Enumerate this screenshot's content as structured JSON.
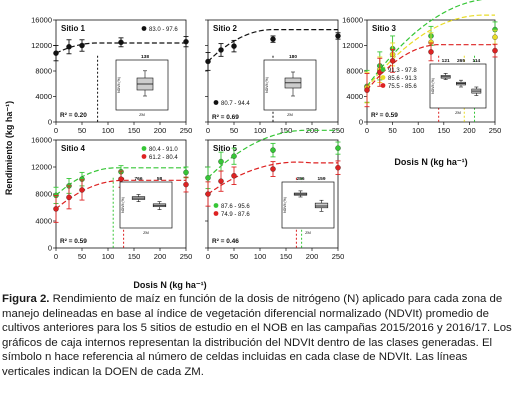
{
  "figure": {
    "y_axis_label": "Rendimiento (kg ha⁻¹)",
    "x_axis_label_bottom_left": "Dosis N (kg ha⁻¹)",
    "x_axis_label_right": "Dosis N (kg ha⁻¹)"
  },
  "caption": {
    "lead": "Figura 2.",
    "text": " Rendimiento de maíz en función de la dosis de nitrógeno (N) aplicado para cada zona de manejo delineadas en base al índice de vegetación diferencial normalizado (NDVIt) promedio de cultivos anteriores para los 5 sitios de estudio en el NOB en las campañas 2015/2016 y 2016/17. Los gráficos de caja internos representan la distribución del NDVIt dentro de las clases generadas. El símbolo n hace referencia al número de celdas incluidas en cada clase de NDVIt. Las líneas verticales indican la DOEN de cada ZM."
  },
  "chart_data": [
    {
      "type": "scatter",
      "title": "Sitio 1",
      "xlim": [
        0,
        250
      ],
      "ylim": [
        0,
        16000
      ],
      "x_ticks": [
        "0",
        "50",
        "100",
        "150",
        "200",
        "250"
      ],
      "y_ticks": [
        "0",
        "4000",
        "8000",
        "12000",
        "16000"
      ],
      "r2": "R² = 0.20",
      "legend_position": "top-right",
      "series": [
        {
          "name": "83.0 - 97.6",
          "color": "#111111",
          "x": [
            0,
            25,
            50,
            125,
            250
          ],
          "y": [
            10800,
            11800,
            12000,
            12500,
            12600
          ],
          "err": [
            1200,
            1100,
            900,
            700,
            800
          ],
          "fit": {
            "a": 10800,
            "b": 40,
            "c": -0.25,
            "xmax": 80
          },
          "doen": 80
        }
      ],
      "inset": {
        "n_labels": [
          "138"
        ],
        "axis_label": "NDVIt (%)",
        "x_label": "ZM",
        "boxes": [
          {
            "min": 0.25,
            "q1": 0.4,
            "med": 0.55,
            "q3": 0.7,
            "max": 0.88,
            "color": "#cccccc"
          }
        ]
      }
    },
    {
      "type": "scatter",
      "title": "Sitio 2",
      "xlim": [
        0,
        250
      ],
      "ylim": [
        0,
        16000
      ],
      "x_ticks": [
        "0",
        "50",
        "100",
        "150",
        "200",
        "250"
      ],
      "y_ticks": [
        "0",
        "4000",
        "8000",
        "12000",
        "16000"
      ],
      "r2": "R² = 0.69",
      "legend_position": "bottom-right",
      "series": [
        {
          "name": "80.7 - 94.4",
          "color": "#111111",
          "x": [
            0,
            25,
            50,
            125,
            250
          ],
          "y": [
            9500,
            11300,
            11900,
            13000,
            13500
          ],
          "err": [
            1400,
            1000,
            900,
            500,
            500
          ],
          "fit": {
            "a": 9500,
            "b": 80,
            "c": -0.32,
            "xmax": 125
          },
          "doen": 125
        }
      ],
      "inset": {
        "n_labels": [
          "180"
        ],
        "axis_label": "NDVIt (%)",
        "x_label": "ZM",
        "boxes": [
          {
            "min": 0.25,
            "q1": 0.45,
            "med": 0.58,
            "q3": 0.7,
            "max": 0.85,
            "color": "#cccccc"
          }
        ]
      }
    },
    {
      "type": "scatter",
      "title": "Sitio 3",
      "xlim": [
        0,
        250
      ],
      "ylim": [
        0,
        16000
      ],
      "x_ticks": [
        "0",
        "50",
        "100",
        "150",
        "200",
        "250"
      ],
      "y_ticks": [
        "0",
        "4000",
        "8000",
        "12000",
        "16000"
      ],
      "r2": "R² = 0.59",
      "legend_position": "bottom-left",
      "series": [
        {
          "name": "91.3 - 97.8",
          "color": "#36c636",
          "x": [
            0,
            25,
            50,
            125,
            250
          ],
          "y": [
            5600,
            8800,
            11500,
            13500,
            14500
          ],
          "err": [
            2500,
            2200,
            2000,
            1500,
            1200
          ],
          "fit": {
            "a": 5600,
            "b": 110,
            "c": -0.22,
            "xmax": 250
          },
          "doen": 210
        },
        {
          "name": "85.6 - 91.3",
          "color": "#e8dc27",
          "x": [
            0,
            25,
            50,
            125,
            250
          ],
          "y": [
            5400,
            8200,
            10600,
            12500,
            13300
          ],
          "err": [
            2400,
            2000,
            1800,
            1500,
            1100
          ],
          "fit": {
            "a": 5400,
            "b": 100,
            "c": -0.22,
            "xmax": 230
          },
          "doen": 190
        },
        {
          "name": "75.5 - 85.6",
          "color": "#dd2222",
          "x": [
            0,
            25,
            50,
            125,
            250
          ],
          "y": [
            5000,
            7800,
            9600,
            11000,
            11200
          ],
          "err": [
            2600,
            2200,
            1800,
            1400,
            1000
          ],
          "fit": {
            "a": 5000,
            "b": 100,
            "c": -0.35,
            "xmax": 150
          },
          "doen": 140
        }
      ],
      "inset": {
        "n_labels": [
          "121",
          "265",
          "114"
        ],
        "axis_label": "NDVIt (%)",
        "x_label": "ZM",
        "boxes": [
          {
            "min": 0.72,
            "q1": 0.76,
            "med": 0.8,
            "q3": 0.84,
            "max": 0.9,
            "color": "#cccccc"
          },
          {
            "min": 0.5,
            "q1": 0.56,
            "med": 0.6,
            "q3": 0.64,
            "max": 0.7,
            "color": "#cccccc"
          },
          {
            "min": 0.25,
            "q1": 0.32,
            "med": 0.38,
            "q3": 0.44,
            "max": 0.5,
            "color": "#cccccc"
          }
        ]
      }
    },
    {
      "type": "scatter",
      "title": "Sitio 4",
      "xlim": [
        0,
        250
      ],
      "ylim": [
        0,
        16000
      ],
      "x_ticks": [
        "0",
        "50",
        "100",
        "150",
        "200",
        "250"
      ],
      "y_ticks": [
        "0",
        "4000",
        "8000",
        "12000",
        "16000"
      ],
      "r2": "R² = 0.59",
      "legend_position": "top-right",
      "series": [
        {
          "name": "80.4 - 91.0",
          "color": "#36c636",
          "x": [
            0,
            25,
            50,
            125,
            250
          ],
          "y": [
            7800,
            9200,
            10200,
            11300,
            11200
          ],
          "err": [
            1200,
            1100,
            1000,
            900,
            800
          ],
          "fit": {
            "a": 7800,
            "b": 70,
            "c": -0.3,
            "xmax": 115
          },
          "doen": 110
        },
        {
          "name": "61.2 - 80.4",
          "color": "#dd2222",
          "x": [
            0,
            25,
            50,
            125,
            250
          ],
          "y": [
            5800,
            7500,
            8600,
            10200,
            9400
          ],
          "err": [
            2000,
            1700,
            1500,
            1200,
            1100
          ],
          "fit": {
            "a": 5800,
            "b": 65,
            "c": -0.25,
            "xmax": 130
          },
          "doen": 130
        }
      ],
      "inset": {
        "n_labels": [
          "766",
          "58"
        ],
        "axis_label": "NDVIt (%)",
        "x_label": "ZM",
        "boxes": [
          {
            "min": 0.62,
            "q1": 0.68,
            "med": 0.72,
            "q3": 0.76,
            "max": 0.82,
            "color": "#cccccc"
          },
          {
            "min": 0.4,
            "q1": 0.48,
            "med": 0.52,
            "q3": 0.56,
            "max": 0.62,
            "color": "#cccccc"
          }
        ]
      }
    },
    {
      "type": "scatter",
      "title": "Sitio 5",
      "xlim": [
        0,
        250
      ],
      "ylim": [
        0,
        16000
      ],
      "x_ticks": [
        "0",
        "50",
        "100",
        "150",
        "200",
        "250"
      ],
      "y_ticks": [
        "0",
        "4000",
        "8000",
        "12000",
        "16000"
      ],
      "r2": "R² = 0.46",
      "legend_position": "bottom-left",
      "series": [
        {
          "name": "87.6 - 95.6",
          "color": "#36c636",
          "x": [
            0,
            25,
            50,
            125,
            250
          ],
          "y": [
            10400,
            12800,
            13600,
            14500,
            14800
          ],
          "err": [
            1600,
            1400,
            1200,
            1000,
            900
          ],
          "fit": {
            "a": 10400,
            "b": 75,
            "c": -0.2,
            "xmax": 190
          },
          "doen": 180
        },
        {
          "name": "74.9 - 87.6",
          "color": "#dd2222",
          "x": [
            0,
            25,
            50,
            125,
            250
          ],
          "y": [
            8000,
            9900,
            10700,
            11700,
            11900
          ],
          "err": [
            1800,
            1500,
            1300,
            1100,
            1000
          ],
          "fit": {
            "a": 8000,
            "b": 55,
            "c": -0.16,
            "xmax": 200
          },
          "doen": 170
        }
      ],
      "inset": {
        "n_labels": [
          "286",
          "159"
        ],
        "axis_label": "NDVIt (%)",
        "x_label": "ZM",
        "boxes": [
          {
            "min": 0.75,
            "q1": 0.8,
            "med": 0.83,
            "q3": 0.86,
            "max": 0.92,
            "color": "#cccccc"
          },
          {
            "min": 0.35,
            "q1": 0.45,
            "med": 0.5,
            "q3": 0.58,
            "max": 0.66,
            "color": "#cccccc"
          }
        ]
      }
    }
  ]
}
